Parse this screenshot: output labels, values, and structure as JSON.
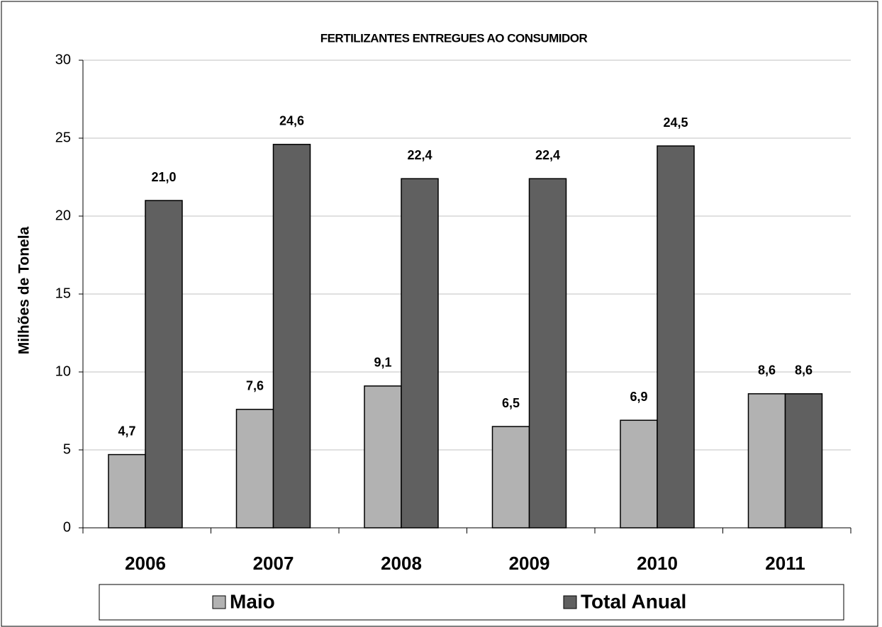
{
  "chart_data": {
    "type": "bar",
    "title": "FERTILIZANTES ENTREGUES AO CONSUMIDOR",
    "y_label": "Milhões de Tonela",
    "categories": [
      "2006",
      "2007",
      "2008",
      "2009",
      "2010",
      "2011"
    ],
    "series": [
      {
        "name": "Maio",
        "color": "#b2b2b2",
        "values": [
          4.7,
          7.6,
          9.1,
          6.5,
          6.9,
          8.6
        ],
        "value_labels": [
          "4,7",
          "7,6",
          "9,1",
          "6,5",
          "6,9",
          "8,6"
        ]
      },
      {
        "name": "Total Anual",
        "color": "#606060",
        "values": [
          21.0,
          24.6,
          22.4,
          22.4,
          24.5,
          8.6
        ],
        "value_labels": [
          "21,0",
          "24,6",
          "22,4",
          "22,4",
          "24,5",
          "8,6"
        ]
      }
    ],
    "ylim": [
      0,
      30
    ],
    "yticks": [
      0,
      5,
      10,
      15,
      20,
      25,
      30
    ],
    "grid": true,
    "legend": "bottom"
  }
}
